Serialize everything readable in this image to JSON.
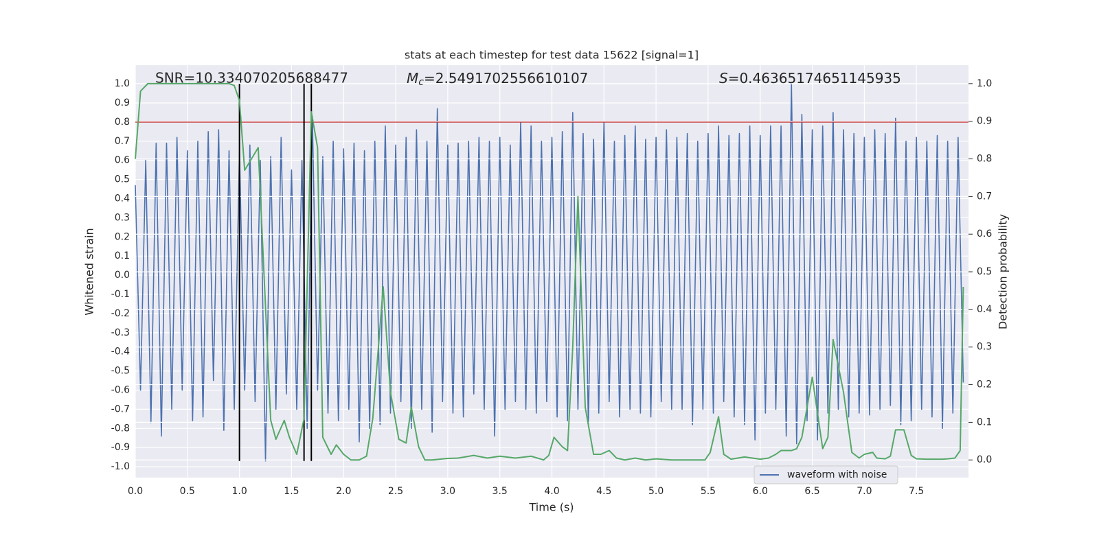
{
  "chart_data": {
    "type": "line",
    "title": "stats at each timestep for test data 15622 [signal=1]",
    "xlabel": "Time (s)",
    "ylabel": "Whitened strain",
    "y2label": "Detection probability",
    "annotations": {
      "snr": "SNR=10.334070205688477",
      "mc": {
        "symbol": "M",
        "subscript": "c",
        "text": "=2.5491702556610107"
      },
      "s": {
        "symbol": "S",
        "text": "=0.46365174651145935"
      }
    },
    "xlim": [
      0,
      8.0
    ],
    "ylim": [
      -1.057,
      1.097
    ],
    "y2lim": [
      -0.047,
      1.049
    ],
    "xticks": [
      {
        "value": 0,
        "label": "0.0"
      },
      0.5,
      {
        "value": 1,
        "label": "1.0"
      },
      1.5,
      {
        "value": 2,
        "label": "2.0"
      },
      2.5,
      {
        "value": 3,
        "label": "3.0"
      },
      3.5,
      {
        "value": 4,
        "label": "4.0"
      },
      4.5,
      {
        "value": 5,
        "label": "5.0"
      },
      5.5,
      {
        "value": 6,
        "label": "6.0"
      },
      6.5,
      {
        "value": 7,
        "label": "7.0"
      },
      7.5
    ],
    "yticks": [
      {
        "value": -1,
        "label": "-1.0"
      },
      -0.9,
      -0.8,
      -0.7,
      -0.6,
      -0.5,
      -0.4,
      -0.3,
      -0.2,
      -0.1,
      {
        "value": 0,
        "label": "0.0"
      },
      0.1,
      0.2,
      0.3,
      0.4,
      0.5,
      0.6,
      0.7,
      0.8,
      0.9,
      {
        "value": 1,
        "label": "1.0"
      }
    ],
    "y2ticks": [
      {
        "value": 0,
        "label": "0.0"
      },
      0.1,
      0.2,
      0.3,
      0.4,
      0.5,
      0.6,
      0.7,
      0.8,
      0.9,
      {
        "value": 1,
        "label": "1.0"
      }
    ],
    "grid": true,
    "legend": "lower right",
    "hline": {
      "y": 0.8,
      "color": "#c0282a"
    },
    "vlines": {
      "x": [
        1.0,
        1.62,
        1.69
      ],
      "ymin": -0.97,
      "ymax": 1.0,
      "color": "#000000"
    },
    "series": [
      {
        "name": "waveform with noise",
        "color": "#4c72b0",
        "x": [
          0,
          0.05,
          0.1,
          0.15,
          0.2,
          0.25,
          0.3,
          0.35,
          0.4,
          0.45,
          0.5,
          0.55,
          0.6,
          0.65,
          0.7,
          0.75,
          0.8,
          0.85,
          0.9,
          0.95,
          1,
          1.05,
          1.1,
          1.15,
          1.2,
          1.25,
          1.3,
          1.35,
          1.4,
          1.45,
          1.5,
          1.55,
          1.6,
          1.65,
          1.7,
          1.75,
          1.8,
          1.85,
          1.9,
          1.95,
          2,
          2.05,
          2.1,
          2.15,
          2.2,
          2.25,
          2.3,
          2.35,
          2.4,
          2.45,
          2.5,
          2.55,
          2.6,
          2.65,
          2.7,
          2.75,
          2.8,
          2.85,
          2.9,
          2.95,
          3,
          3.05,
          3.1,
          3.15,
          3.2,
          3.25,
          3.3,
          3.35,
          3.4,
          3.45,
          3.5,
          3.55,
          3.6,
          3.65,
          3.7,
          3.75,
          3.8,
          3.85,
          3.9,
          3.95,
          4,
          4.05,
          4.1,
          4.15,
          4.2,
          4.25,
          4.3,
          4.35,
          4.4,
          4.45,
          4.5,
          4.55,
          4.6,
          4.65,
          4.7,
          4.75,
          4.8,
          4.85,
          4.9,
          4.95,
          5,
          5.05,
          5.1,
          5.15,
          5.2,
          5.25,
          5.3,
          5.35,
          5.4,
          5.45,
          5.5,
          5.55,
          5.6,
          5.65,
          5.7,
          5.75,
          5.8,
          5.85,
          5.9,
          5.95,
          6,
          6.05,
          6.1,
          6.15,
          6.2,
          6.25,
          6.3,
          6.35,
          6.4,
          6.45,
          6.5,
          6.55,
          6.6,
          6.65,
          6.7,
          6.75,
          6.8,
          6.85,
          6.9,
          6.95,
          7,
          7.05,
          7.1,
          7.15,
          7.2,
          7.25,
          7.3,
          7.35,
          7.4,
          7.45,
          7.5,
          7.55,
          7.6,
          7.65,
          7.7,
          7.75,
          7.8,
          7.85,
          7.9,
          7.95
        ],
        "values": [
          0.47,
          -0.6,
          0.6,
          -0.77,
          0.69,
          -0.84,
          0.69,
          -0.7,
          0.72,
          -0.6,
          0.65,
          -0.76,
          0.7,
          -0.74,
          0.75,
          -0.55,
          0.76,
          -0.81,
          0.65,
          -0.7,
          0.65,
          -0.6,
          0.68,
          -0.66,
          0.6,
          -0.97,
          0.62,
          -0.7,
          0.72,
          -0.62,
          0.55,
          -0.7,
          0.6,
          -0.8,
          0.83,
          -0.6,
          0.62,
          -0.72,
          0.7,
          -0.76,
          0.66,
          -0.7,
          0.69,
          -0.87,
          0.65,
          -0.8,
          0.7,
          -0.78,
          0.78,
          -0.72,
          0.68,
          -0.66,
          0.72,
          -0.8,
          0.76,
          -0.7,
          0.7,
          -0.82,
          0.87,
          -0.66,
          0.68,
          -0.72,
          0.69,
          -0.74,
          0.7,
          -0.62,
          0.72,
          -0.7,
          0.7,
          -0.84,
          0.72,
          -0.7,
          0.68,
          -0.66,
          0.8,
          -0.7,
          0.78,
          -0.72,
          0.7,
          -0.66,
          0.72,
          -0.74,
          0.75,
          -0.76,
          0.85,
          -0.7,
          0.74,
          -0.78,
          0.71,
          -0.72,
          0.8,
          -0.66,
          0.7,
          -0.74,
          0.73,
          -0.7,
          0.78,
          -0.72,
          0.71,
          -0.74,
          0.72,
          -0.66,
          0.76,
          -0.7,
          0.72,
          -0.7,
          0.74,
          -0.78,
          0.7,
          -0.7,
          0.74,
          -0.72,
          0.78,
          -0.66,
          0.73,
          -0.74,
          0.74,
          -0.78,
          0.78,
          -0.86,
          0.73,
          -0.72,
          0.78,
          -0.7,
          0.78,
          -0.84,
          1.0,
          -0.88,
          0.84,
          -0.76,
          0.76,
          -0.86,
          0.78,
          -0.72,
          0.85,
          -0.7,
          0.76,
          -0.74,
          0.74,
          -0.72,
          0.72,
          -0.73,
          0.76,
          -0.7,
          0.74,
          -0.68,
          0.82,
          -0.78,
          0.7,
          -0.76,
          0.72,
          -0.7,
          0.7,
          -0.74,
          0.73,
          -0.8,
          0.7,
          -0.72,
          0.72,
          -0.56
        ]
      },
      {
        "color": "#55a868",
        "axis": "y2",
        "x": [
          0,
          0.05,
          0.12,
          0.9,
          0.95,
          1.0,
          1.05,
          1.18,
          1.3,
          1.35,
          1.43,
          1.48,
          1.55,
          1.62,
          1.69,
          1.75,
          1.8,
          1.88,
          1.93,
          2.0,
          2.07,
          2.15,
          2.22,
          2.28,
          2.38,
          2.45,
          2.53,
          2.6,
          2.65,
          2.72,
          2.78,
          2.85,
          3.0,
          3.1,
          3.25,
          3.38,
          3.5,
          3.65,
          3.8,
          3.92,
          3.97,
          4.02,
          4.1,
          4.15,
          4.2,
          4.25,
          4.32,
          4.4,
          4.47,
          4.55,
          4.62,
          4.7,
          4.8,
          4.9,
          5.0,
          5.15,
          5.3,
          5.47,
          5.52,
          5.6,
          5.65,
          5.72,
          5.85,
          6.0,
          6.08,
          6.15,
          6.2,
          6.3,
          6.35,
          6.4,
          6.5,
          6.6,
          6.65,
          6.7,
          6.8,
          6.88,
          6.95,
          7.0,
          7.08,
          7.12,
          7.2,
          7.25,
          7.3,
          7.38,
          7.45,
          7.5,
          7.6,
          7.75,
          7.8,
          7.87,
          7.92,
          7.95
        ],
        "values": [
          0.8,
          0.98,
          1.0,
          1.0,
          0.995,
          0.955,
          0.77,
          0.83,
          0.106,
          0.055,
          0.105,
          0.06,
          0.015,
          0.11,
          0.925,
          0.83,
          0.06,
          0.015,
          0.04,
          0.015,
          0.0,
          0.0,
          0.01,
          0.11,
          0.46,
          0.18,
          0.055,
          0.045,
          0.14,
          0.035,
          0.0,
          0.0,
          0.004,
          0.005,
          0.012,
          0.005,
          0.01,
          0.005,
          0.01,
          0.0,
          0.012,
          0.06,
          0.035,
          0.025,
          0.3,
          0.7,
          0.14,
          0.015,
          0.015,
          0.025,
          0.005,
          0.0,
          0.005,
          0.0,
          0.003,
          0.0,
          0.0,
          0.0,
          0.02,
          0.115,
          0.015,
          0.002,
          0.008,
          0.002,
          0.005,
          0.015,
          0.025,
          0.025,
          0.03,
          0.06,
          0.22,
          0.03,
          0.06,
          0.32,
          0.18,
          0.02,
          0.005,
          0.015,
          0.02,
          0.005,
          0.003,
          0.01,
          0.08,
          0.08,
          0.012,
          0.003,
          0.002,
          0.002,
          0.003,
          0.005,
          0.025,
          0.46
        ]
      }
    ]
  }
}
